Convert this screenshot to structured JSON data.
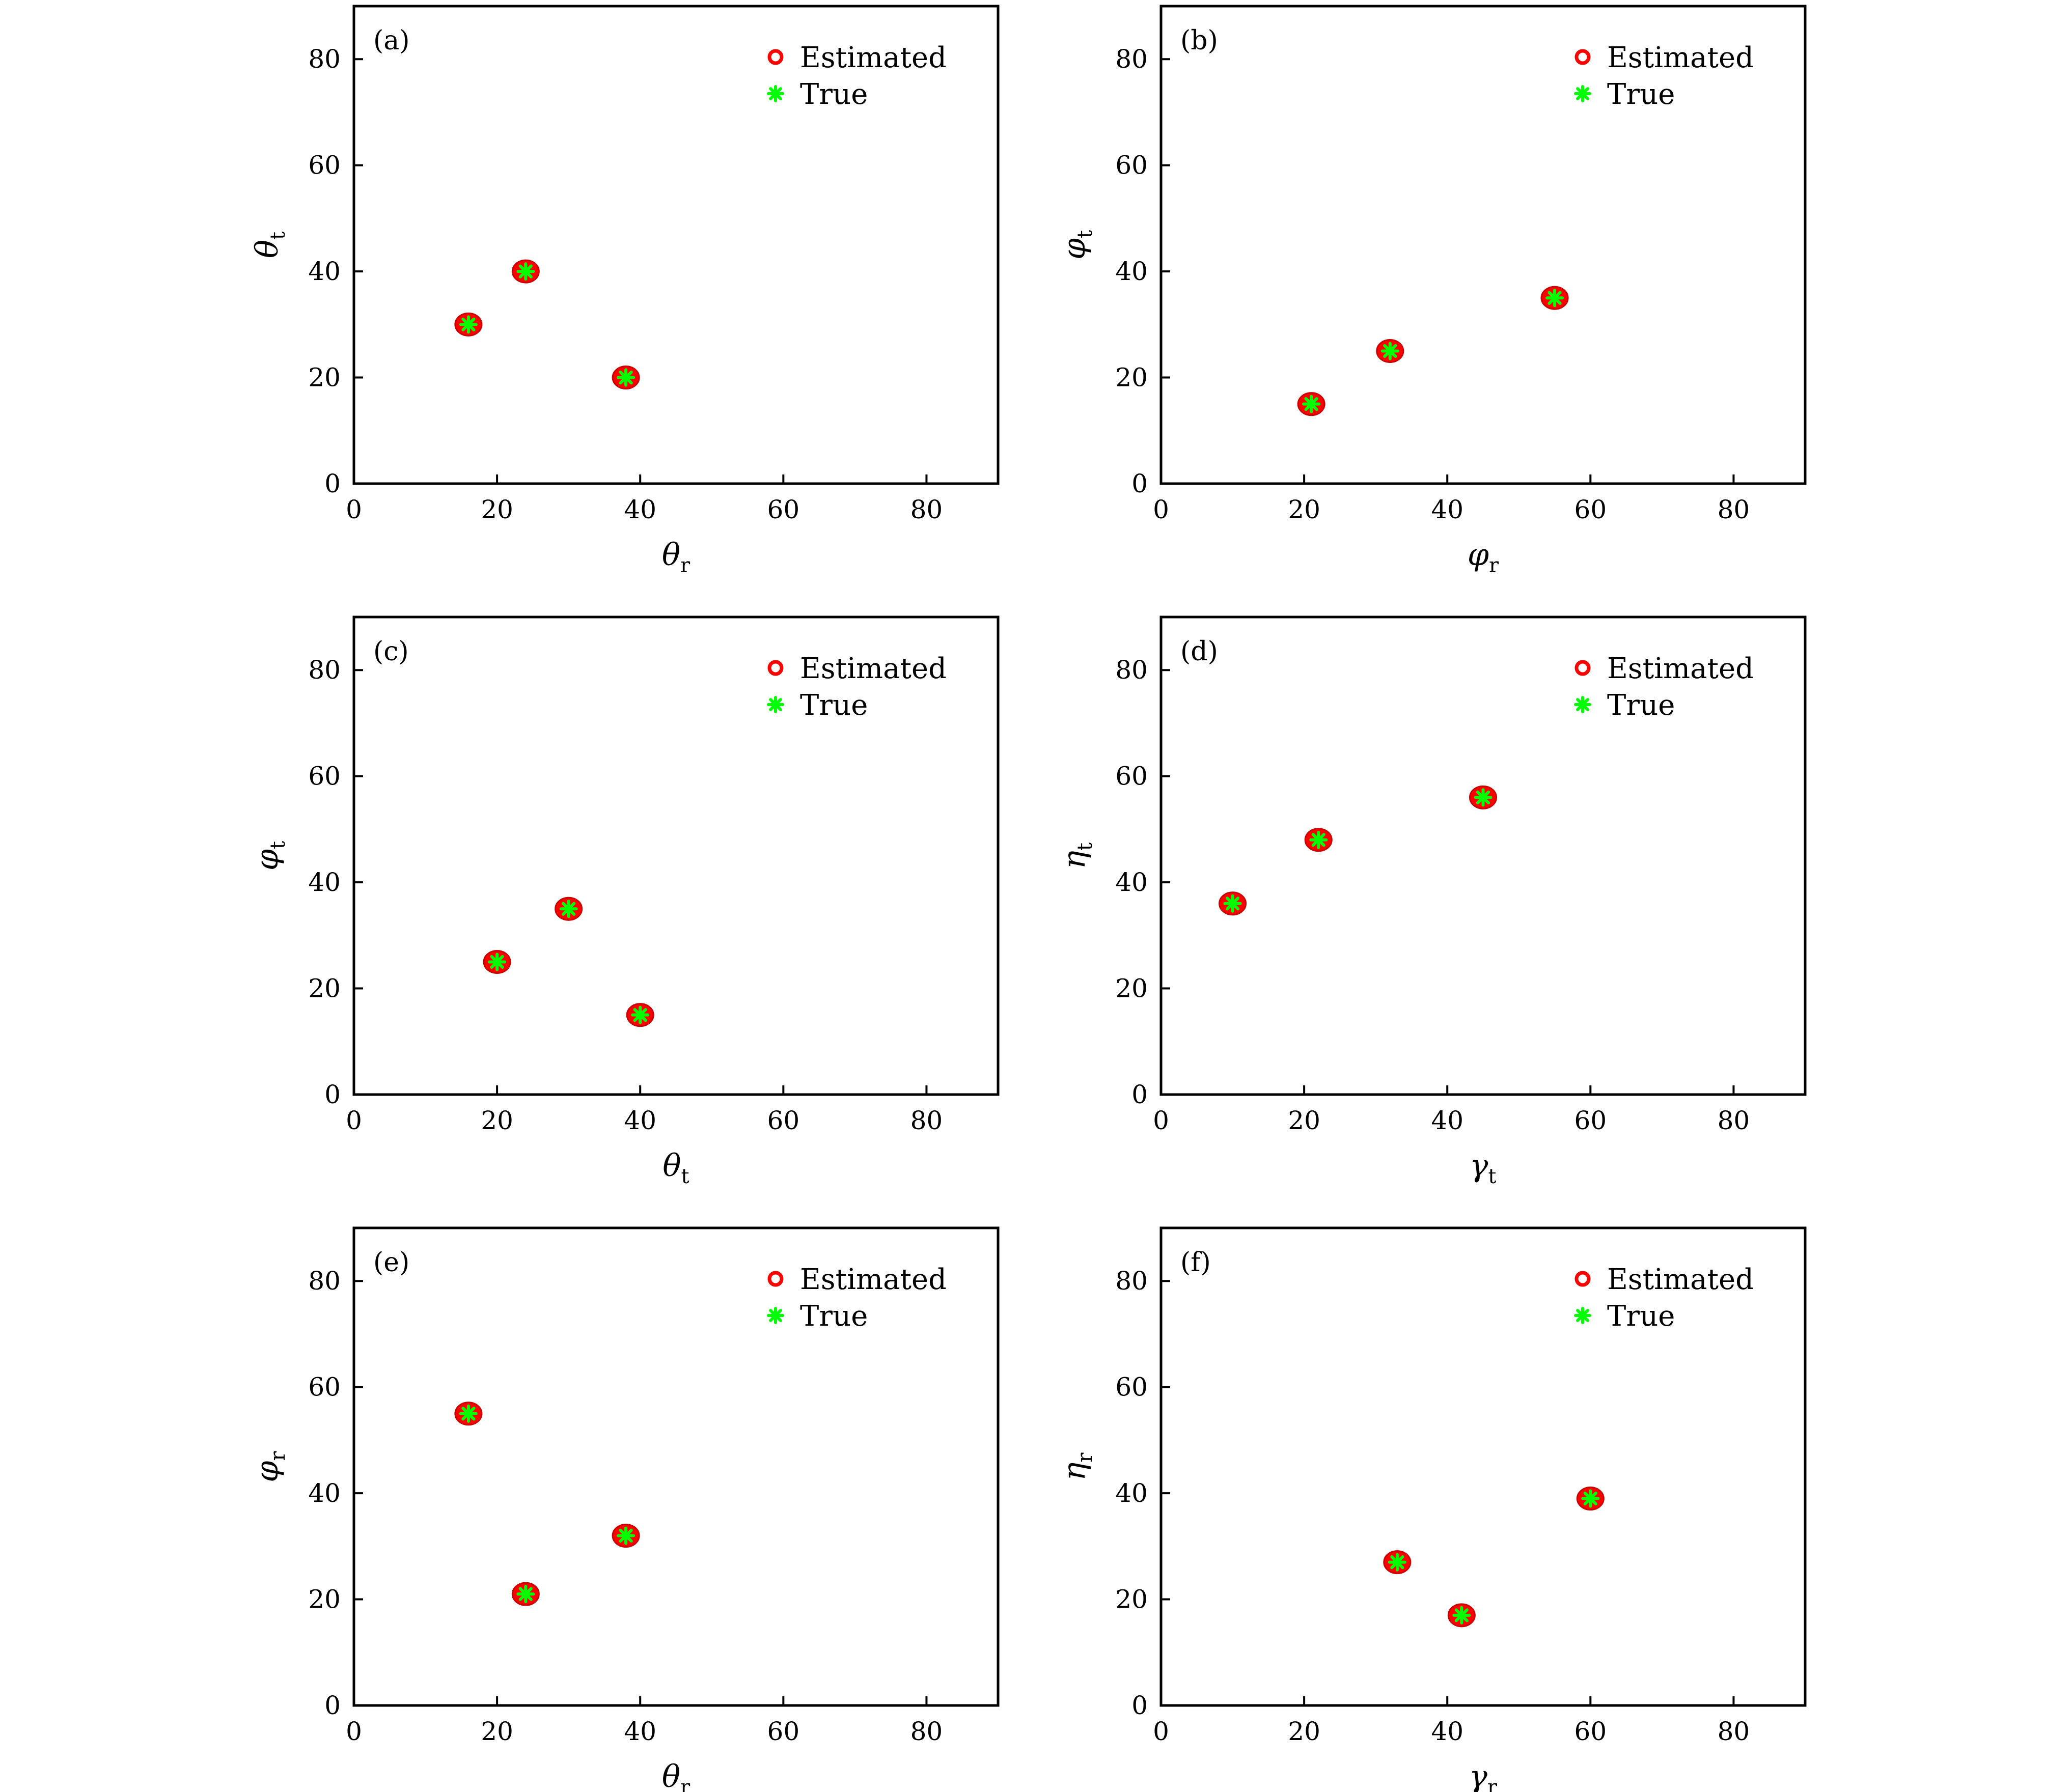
{
  "legend": {
    "estimated": "Estimated",
    "true": "True"
  },
  "colors": {
    "estimated": "#ff0000",
    "true": "#00ff00"
  },
  "chart_data": [
    {
      "type": "scatter",
      "panel": "(a)",
      "xlabel": {
        "symbol": "θ",
        "sub": "r"
      },
      "ylabel": {
        "symbol": "θ",
        "sub": "t"
      },
      "xlim": [
        0,
        90
      ],
      "ylim": [
        0,
        90
      ],
      "xticks": [
        0,
        20,
        40,
        60,
        80
      ],
      "yticks": [
        0,
        20,
        40,
        60,
        80
      ],
      "legend_position": "top-right",
      "series": [
        {
          "name": "Estimated",
          "marker": "circle",
          "points": [
            [
              16,
              30
            ],
            [
              24,
              40
            ],
            [
              38,
              20
            ]
          ]
        },
        {
          "name": "True",
          "marker": "asterisk",
          "points": [
            [
              16,
              30
            ],
            [
              24,
              40
            ],
            [
              38,
              20
            ]
          ]
        }
      ]
    },
    {
      "type": "scatter",
      "panel": "(b)",
      "xlabel": {
        "symbol": "φ",
        "sub": "r"
      },
      "ylabel": {
        "symbol": "φ",
        "sub": "t"
      },
      "xlim": [
        0,
        90
      ],
      "ylim": [
        0,
        90
      ],
      "xticks": [
        0,
        20,
        40,
        60,
        80
      ],
      "yticks": [
        0,
        20,
        40,
        60,
        80
      ],
      "legend_position": "top-right",
      "series": [
        {
          "name": "Estimated",
          "marker": "circle",
          "points": [
            [
              21,
              15
            ],
            [
              32,
              25
            ],
            [
              55,
              35
            ]
          ]
        },
        {
          "name": "True",
          "marker": "asterisk",
          "points": [
            [
              21,
              15
            ],
            [
              32,
              25
            ],
            [
              55,
              35
            ]
          ]
        }
      ]
    },
    {
      "type": "scatter",
      "panel": "(c)",
      "xlabel": {
        "symbol": "θ",
        "sub": "t"
      },
      "ylabel": {
        "symbol": "φ",
        "sub": "t"
      },
      "xlim": [
        0,
        90
      ],
      "ylim": [
        0,
        90
      ],
      "xticks": [
        0,
        20,
        40,
        60,
        80
      ],
      "yticks": [
        0,
        20,
        40,
        60,
        80
      ],
      "legend_position": "top-right",
      "series": [
        {
          "name": "Estimated",
          "marker": "circle",
          "points": [
            [
              20,
              25
            ],
            [
              30,
              35
            ],
            [
              40,
              15
            ]
          ]
        },
        {
          "name": "True",
          "marker": "asterisk",
          "points": [
            [
              20,
              25
            ],
            [
              30,
              35
            ],
            [
              40,
              15
            ]
          ]
        }
      ]
    },
    {
      "type": "scatter",
      "panel": "(d)",
      "xlabel": {
        "symbol": "γ",
        "sub": "t"
      },
      "ylabel": {
        "symbol": "η",
        "sub": "t"
      },
      "xlim": [
        0,
        90
      ],
      "ylim": [
        0,
        90
      ],
      "xticks": [
        0,
        20,
        40,
        60,
        80
      ],
      "yticks": [
        0,
        20,
        40,
        60,
        80
      ],
      "legend_position": "top-right",
      "series": [
        {
          "name": "Estimated",
          "marker": "circle",
          "points": [
            [
              10,
              36
            ],
            [
              22,
              48
            ],
            [
              45,
              56
            ]
          ]
        },
        {
          "name": "True",
          "marker": "asterisk",
          "points": [
            [
              10,
              36
            ],
            [
              22,
              48
            ],
            [
              45,
              56
            ]
          ]
        }
      ]
    },
    {
      "type": "scatter",
      "panel": "(e)",
      "xlabel": {
        "symbol": "θ",
        "sub": "r"
      },
      "ylabel": {
        "symbol": "φ",
        "sub": "r"
      },
      "xlim": [
        0,
        90
      ],
      "ylim": [
        0,
        90
      ],
      "xticks": [
        0,
        20,
        40,
        60,
        80
      ],
      "yticks": [
        0,
        20,
        40,
        60,
        80
      ],
      "legend_position": "top-right",
      "series": [
        {
          "name": "Estimated",
          "marker": "circle",
          "points": [
            [
              16,
              55
            ],
            [
              24,
              21
            ],
            [
              38,
              32
            ]
          ]
        },
        {
          "name": "True",
          "marker": "asterisk",
          "points": [
            [
              16,
              55
            ],
            [
              24,
              21
            ],
            [
              38,
              32
            ]
          ]
        }
      ]
    },
    {
      "type": "scatter",
      "panel": "(f)",
      "xlabel": {
        "symbol": "γ",
        "sub": "r"
      },
      "ylabel": {
        "symbol": "η",
        "sub": "r"
      },
      "xlim": [
        0,
        90
      ],
      "ylim": [
        0,
        90
      ],
      "xticks": [
        0,
        20,
        40,
        60,
        80
      ],
      "yticks": [
        0,
        20,
        40,
        60,
        80
      ],
      "legend_position": "top-right",
      "series": [
        {
          "name": "Estimated",
          "marker": "circle",
          "points": [
            [
              33,
              27
            ],
            [
              42,
              17
            ],
            [
              60,
              39
            ]
          ]
        },
        {
          "name": "True",
          "marker": "asterisk",
          "points": [
            [
              33,
              27
            ],
            [
              42,
              17
            ],
            [
              60,
              39
            ]
          ]
        }
      ]
    }
  ]
}
